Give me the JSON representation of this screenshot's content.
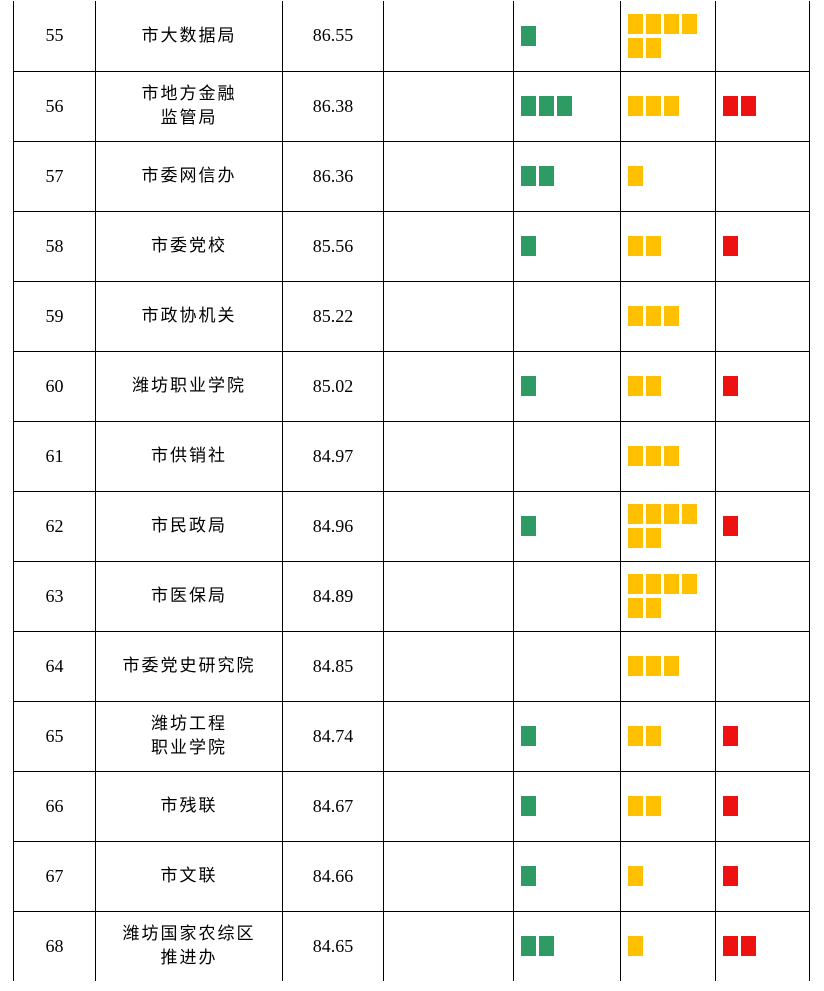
{
  "colors": {
    "green": "#2e9a64",
    "yellow": "#ffc000",
    "red": "#ee1111"
  },
  "rows": [
    {
      "no": "55",
      "name": [
        "市大数据局"
      ],
      "score": "86.55",
      "green": 1,
      "yellow": 6,
      "red": 0
    },
    {
      "no": "56",
      "name": [
        "市地方金融",
        "监管局"
      ],
      "score": "86.38",
      "green": 3,
      "yellow": 3,
      "red": 2
    },
    {
      "no": "57",
      "name": [
        "市委网信办"
      ],
      "score": "86.36",
      "green": 2,
      "yellow": 1,
      "red": 0
    },
    {
      "no": "58",
      "name": [
        "市委党校"
      ],
      "score": "85.56",
      "green": 1,
      "yellow": 2,
      "red": 1
    },
    {
      "no": "59",
      "name": [
        "市政协机关"
      ],
      "score": "85.22",
      "green": 0,
      "yellow": 3,
      "red": 0
    },
    {
      "no": "60",
      "name": [
        "潍坊职业学院"
      ],
      "score": "85.02",
      "green": 1,
      "yellow": 2,
      "red": 1
    },
    {
      "no": "61",
      "name": [
        "市供销社"
      ],
      "score": "84.97",
      "green": 0,
      "yellow": 3,
      "red": 0
    },
    {
      "no": "62",
      "name": [
        "市民政局"
      ],
      "score": "84.96",
      "green": 1,
      "yellow": 6,
      "red": 1
    },
    {
      "no": "63",
      "name": [
        "市医保局"
      ],
      "score": "84.89",
      "green": 0,
      "yellow": 6,
      "red": 0
    },
    {
      "no": "64",
      "name": [
        "市委党史研究院"
      ],
      "score": "84.85",
      "green": 0,
      "yellow": 3,
      "red": 0
    },
    {
      "no": "65",
      "name": [
        "潍坊工程",
        "职业学院"
      ],
      "score": "84.74",
      "green": 1,
      "yellow": 2,
      "red": 1
    },
    {
      "no": "66",
      "name": [
        "市残联"
      ],
      "score": "84.67",
      "green": 1,
      "yellow": 2,
      "red": 1
    },
    {
      "no": "67",
      "name": [
        "市文联"
      ],
      "score": "84.66",
      "green": 1,
      "yellow": 1,
      "red": 1
    },
    {
      "no": "68",
      "name": [
        "潍坊国家农综区",
        "推进办"
      ],
      "score": "84.65",
      "green": 2,
      "yellow": 1,
      "red": 2
    }
  ]
}
